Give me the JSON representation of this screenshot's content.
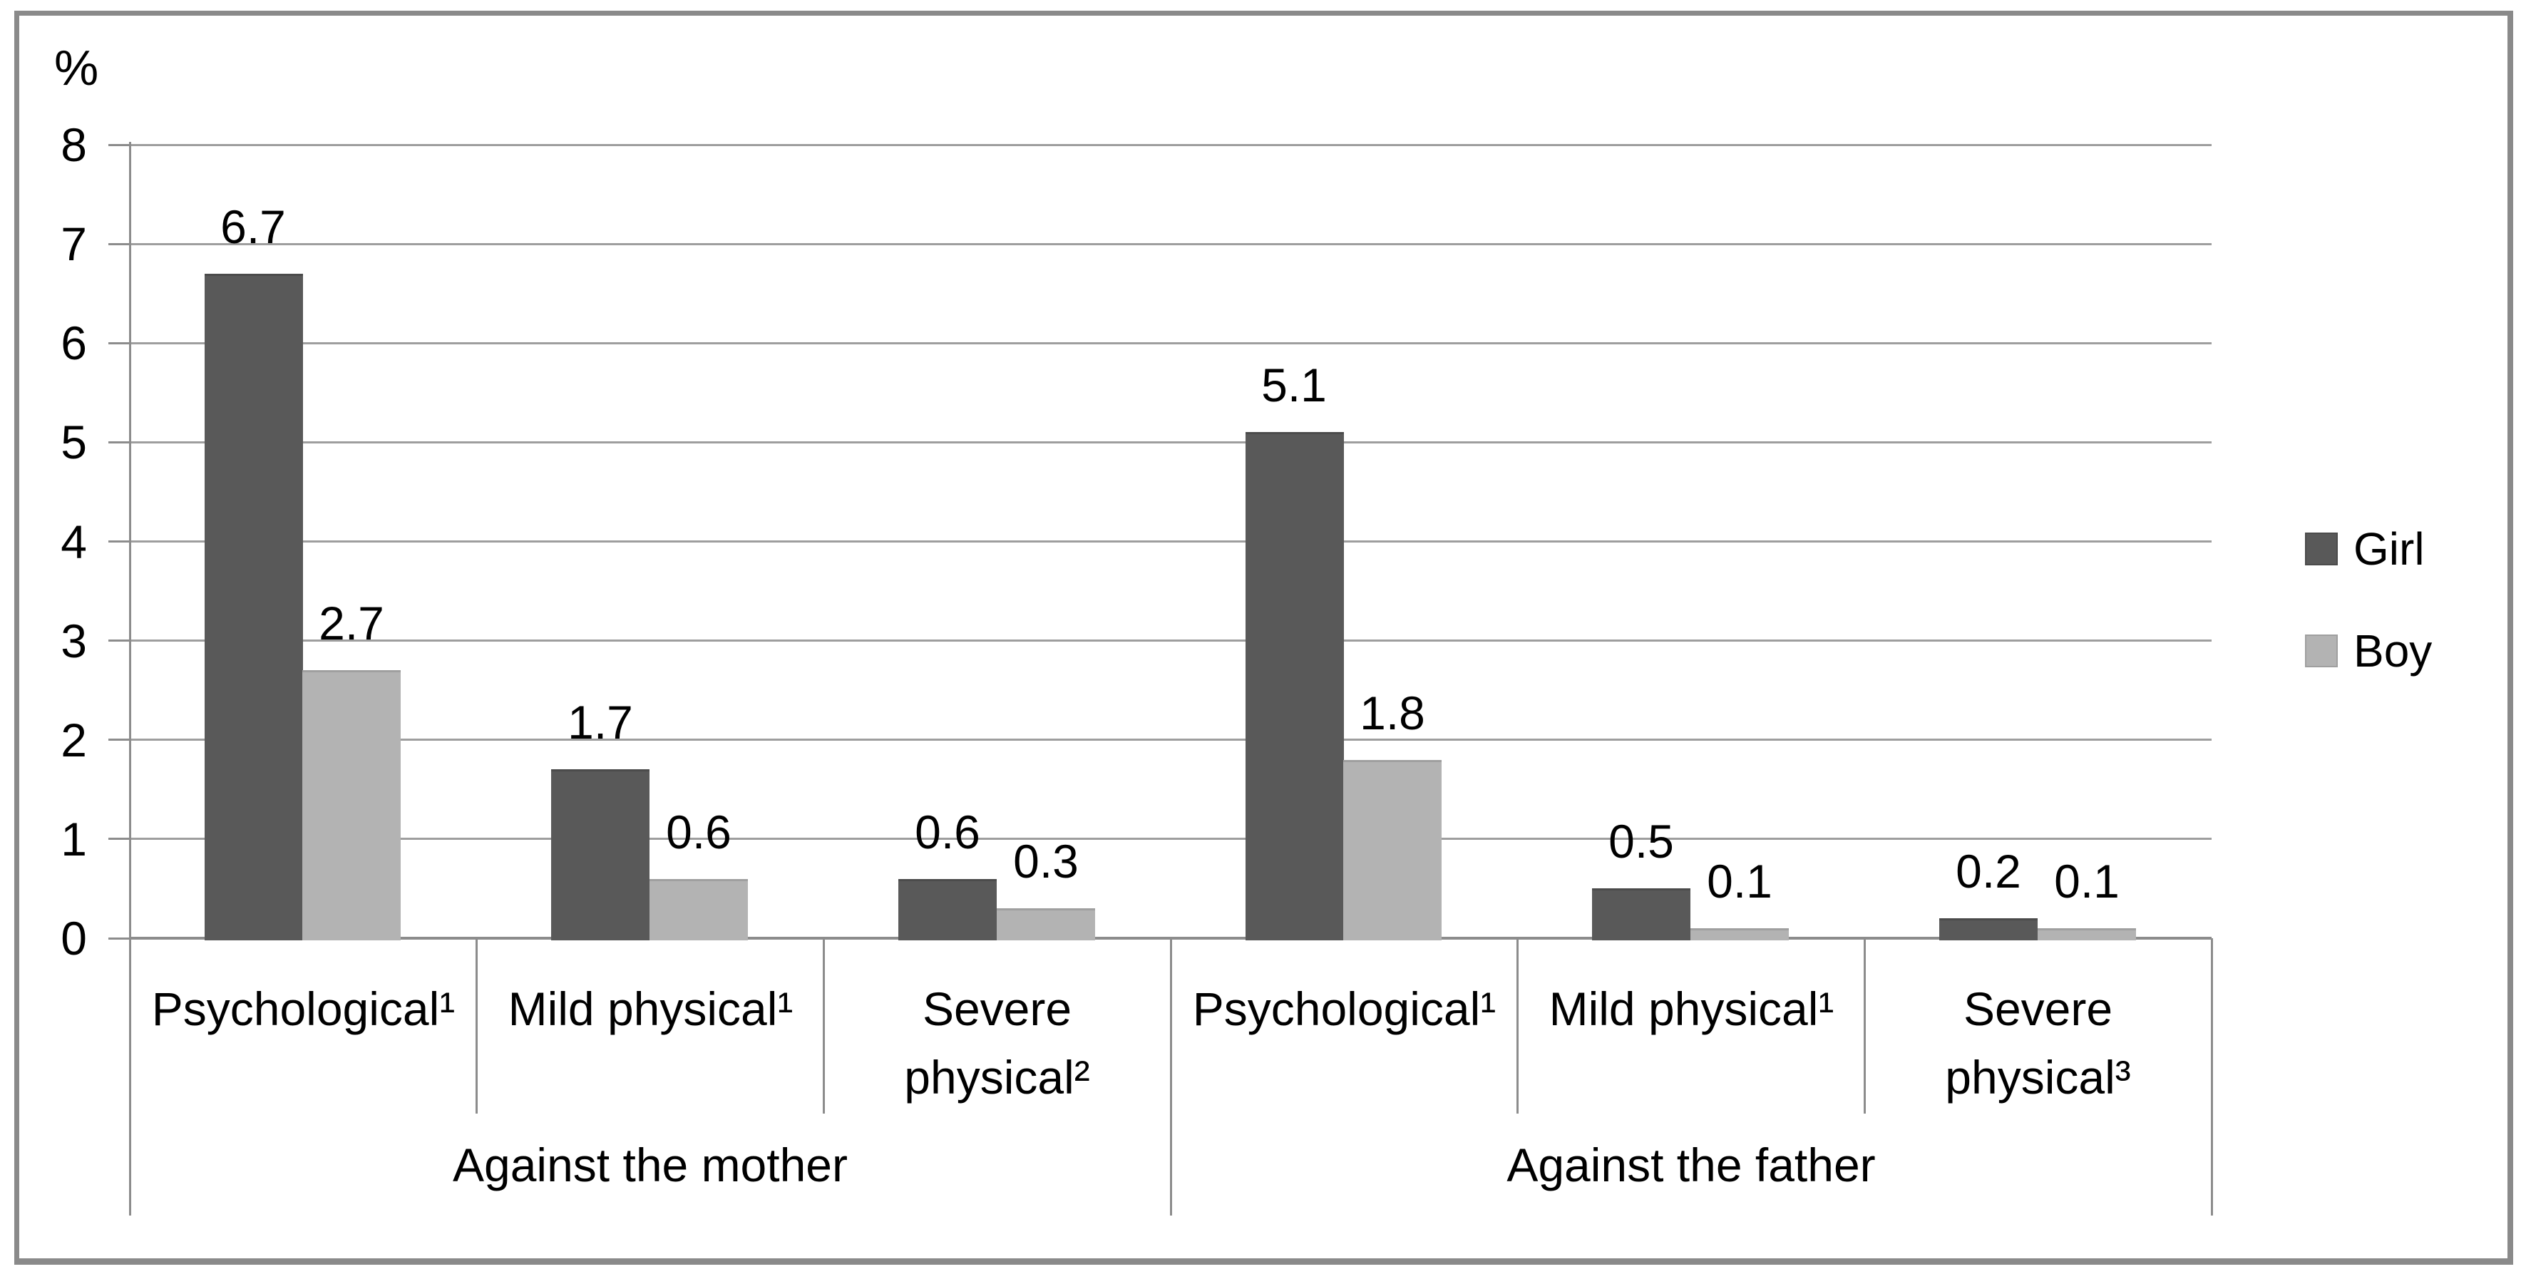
{
  "figure": {
    "background": "#ffffff",
    "frame_color": "#8a8a8a"
  },
  "chart_data": {
    "type": "bar",
    "title": "",
    "xlabel": "",
    "ylabel": "%",
    "ylim": [
      0,
      8
    ],
    "yticks": [
      0,
      1,
      2,
      3,
      4,
      5,
      6,
      7,
      8
    ],
    "grid": true,
    "legend_position": "right",
    "data_labels": true,
    "label_decimals": 1,
    "categories": [
      "Psychological¹",
      "Mild physical¹",
      "Severe\nphysical²",
      "Psychological¹",
      "Mild physical¹",
      "Severe\nphysical³"
    ],
    "groups": [
      {
        "label": "Against the mother",
        "span": 3
      },
      {
        "label": "Against the father",
        "span": 3
      }
    ],
    "series": [
      {
        "name": "Girl",
        "color": "#595959",
        "cap_color": "#4b4b4b",
        "values": [
          6.7,
          1.7,
          0.6,
          5.1,
          0.5,
          0.2
        ]
      },
      {
        "name": "Boy",
        "color": "#b3b3b3",
        "cap_color": "#9f9f9f",
        "values": [
          2.7,
          0.6,
          0.3,
          1.8,
          0.1,
          0.1
        ]
      }
    ]
  },
  "colors": {
    "gridline": "#9e9e9e",
    "axis": "#8c8c8c",
    "text": "#000000"
  }
}
